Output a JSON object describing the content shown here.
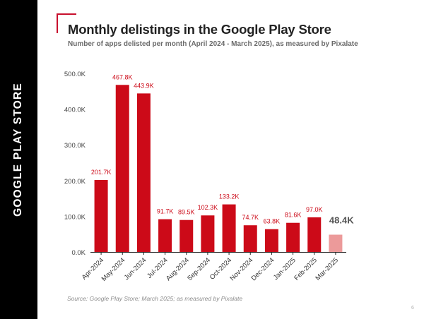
{
  "side_label": "GOOGLE PLAY STORE",
  "title": "Monthly delistings in the Google Play Store",
  "subtitle": "Number of apps delisted per month (April 2024 - March 2025), as measured by Pixalate",
  "source": "Source: Google Play Store; March 2025; as measured by Pixalate",
  "page_number": "6",
  "colors": {
    "bar": "#cc0a18",
    "bar_highlight": "#ec9a9a",
    "label": "#cc0a18",
    "label_highlight": "#555555",
    "sidebar": "#000000"
  },
  "chart_data": {
    "type": "bar",
    "categories": [
      "Apr-2024",
      "May-2024",
      "Jun-2024",
      "Jul-2024",
      "Aug-2024",
      "Sep-2024",
      "Oct-2024",
      "Nov-2024",
      "Dec-2024",
      "Jan-2025",
      "Feb-2025",
      "Mar-2025"
    ],
    "values": [
      201.7,
      467.8,
      443.9,
      91.7,
      89.5,
      102.3,
      133.2,
      74.7,
      63.8,
      81.6,
      97.0,
      48.4
    ],
    "data_labels": [
      "201.7K",
      "467.8K",
      "443.9K",
      "91.7K",
      "89.5K",
      "102.3K",
      "133.2K",
      "74.7K",
      "63.8K",
      "81.6K",
      "97.0K",
      "48.4K"
    ],
    "highlight_index": 11,
    "y_unit": "thousands of apps",
    "ylim": [
      0,
      500
    ],
    "yticks": [
      0,
      100,
      200,
      300,
      400,
      500
    ],
    "ytick_labels": [
      "0.0K",
      "100.0K",
      "200.0K",
      "300.0K",
      "400.0K",
      "500.0K"
    ],
    "grid": false,
    "legend": "none"
  }
}
